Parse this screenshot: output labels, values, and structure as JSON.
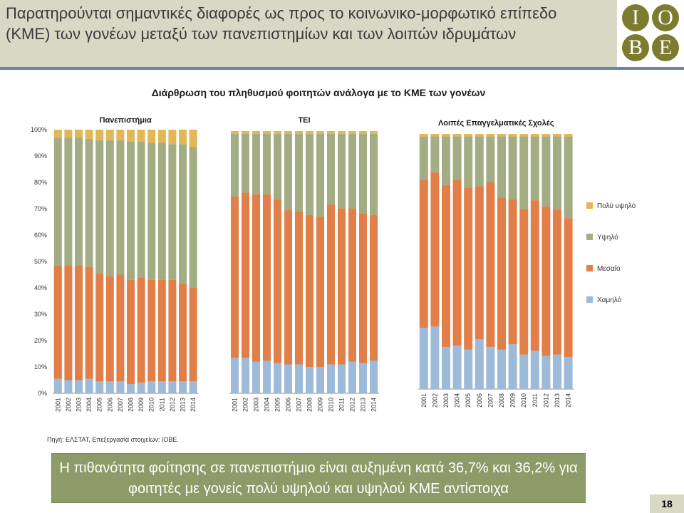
{
  "header": {
    "title": "Παρατηρούνται σημαντικές διαφορές ως προς το κοινωνικο-μορφωτικό επίπεδο (ΚΜΕ) των γονέων μεταξύ των πανεπιστημίων και των λοιπών ιδρυμάτων",
    "logo_letters": [
      "Ι",
      "Ο",
      "Β",
      "Ε"
    ]
  },
  "chart_title": "Διάρθρωση του πληθυσμού φοιτητών ανάλογα με το ΚΜΕ των γονέων",
  "source": "Πηγή: ΕΛΣΤΑΤ, Επεξεργασία στοιχείων: ΙΟΒΕ.",
  "note": "Η πιθανότητα φοίτησης σε πανεπιστήμιο είναι αυξημένη κατά 36,7% και 36,2% για φοιτητές με γονείς πολύ υψηλού και υψηλού ΚΜΕ αντίστοιχα",
  "page_number": "18",
  "colors": {
    "Χαμηλό": "#9dbad9",
    "Μεσαίο": "#e27f49",
    "Υψηλό": "#a2ad83",
    "Πολύ υψηλό": "#e3b657"
  },
  "legend": [
    "Πολύ υψηλό",
    "Υψηλό",
    "Μεσαίο",
    "Χαμηλό"
  ],
  "chart_data": [
    {
      "type": "bar",
      "stacked": true,
      "title": "Πανεπιστήμια",
      "categories": [
        "2001",
        "2002",
        "2003",
        "2004",
        "2005",
        "2006",
        "2007",
        "2008",
        "2009",
        "2010",
        "2011",
        "2012",
        "2013",
        "2014"
      ],
      "ylim": [
        0,
        100
      ],
      "yticks": [
        "0%",
        "10%",
        "20%",
        "30%",
        "40%",
        "50%",
        "60%",
        "70%",
        "80%",
        "90%",
        "100%"
      ],
      "series": [
        {
          "name": "Χαμηλό",
          "values": [
            5.5,
            5,
            5,
            5.5,
            4.5,
            4.5,
            4.5,
            3.5,
            4,
            4.5,
            4.5,
            4.5,
            4.5,
            4.5
          ]
        },
        {
          "name": "Μεσαίο",
          "values": [
            43,
            43.5,
            43.5,
            42.5,
            41,
            40,
            40.5,
            39.5,
            40,
            38.5,
            38.5,
            38.5,
            37,
            35.5
          ]
        },
        {
          "name": "Υψηλό",
          "values": [
            48.5,
            48.5,
            48.5,
            48.5,
            50.5,
            51.5,
            51,
            52.5,
            51.5,
            52,
            52,
            51.5,
            53,
            53.5
          ]
        },
        {
          "name": "Πολύ υψηλό",
          "values": [
            3,
            3,
            3,
            3.5,
            4,
            4,
            4,
            4.5,
            4.5,
            5,
            5,
            5.5,
            5.5,
            6.5
          ]
        }
      ]
    },
    {
      "type": "bar",
      "stacked": true,
      "title": "ΤΕΙ",
      "categories": [
        "2001",
        "2002",
        "2003",
        "2004",
        "2005",
        "2006",
        "2007",
        "2008",
        "2009",
        "2010",
        "2011",
        "2012",
        "2013",
        "2014"
      ],
      "ylim": [
        0,
        100
      ],
      "series": [
        {
          "name": "Χαμηλό",
          "values": [
            13.5,
            13.5,
            12,
            12.5,
            11.5,
            11,
            11,
            10,
            10,
            11,
            11,
            12,
            11.5,
            12.5
          ]
        },
        {
          "name": "Μεσαίο",
          "values": [
            61.5,
            63,
            64,
            63.5,
            62.5,
            59,
            58.5,
            58,
            57.5,
            61,
            59.5,
            58.5,
            57,
            55.5
          ]
        },
        {
          "name": "Υψηλό",
          "values": [
            24,
            22.5,
            23,
            23,
            25,
            29,
            29.5,
            31,
            31.5,
            27,
            28.5,
            28.5,
            30.5,
            31
          ]
        },
        {
          "name": "Πολύ υψηλό",
          "values": [
            1,
            1,
            1,
            1,
            1,
            1,
            1,
            1,
            1,
            1,
            1,
            1,
            1,
            1
          ]
        }
      ]
    },
    {
      "type": "bar",
      "stacked": true,
      "title": "Λοιπές Επαγγελματικές Σχολές",
      "categories": [
        "2001",
        "2002",
        "2003",
        "2004",
        "2005",
        "2006",
        "2007",
        "2008",
        "2009",
        "2010",
        "2011",
        "2012",
        "2013",
        "2014"
      ],
      "ylim": [
        0,
        100
      ],
      "series": [
        {
          "name": "Χαμηλό",
          "values": [
            24,
            24.5,
            16.5,
            17,
            15.5,
            19.5,
            16.5,
            15.5,
            17.5,
            13.5,
            15,
            13,
            13.5,
            12.5
          ]
        },
        {
          "name": "Μεσαίο",
          "values": [
            58,
            60.5,
            63.5,
            65,
            63.5,
            60,
            64.5,
            59.5,
            57,
            57,
            59,
            58.5,
            57,
            54.5
          ]
        },
        {
          "name": "Υψηλό",
          "values": [
            17,
            14,
            19,
            17,
            20,
            19.5,
            18,
            24,
            24.5,
            28.5,
            25,
            27.5,
            28.5,
            32
          ]
        },
        {
          "name": "Πολύ υψηλό",
          "values": [
            1,
            1,
            1,
            1,
            1,
            1,
            1,
            1,
            1,
            1,
            1,
            1,
            1,
            1
          ]
        }
      ]
    }
  ]
}
